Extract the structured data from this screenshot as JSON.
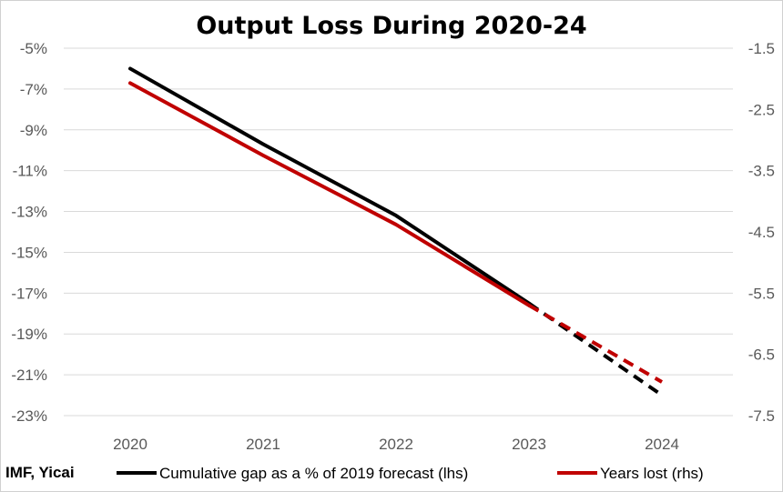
{
  "chart_data": {
    "type": "line",
    "title": "Output Loss During 2020-24",
    "source": "IMF, Yicai",
    "categories": [
      "2020",
      "2021",
      "2022",
      "2023",
      "2024"
    ],
    "y_left": {
      "ticks": [
        "-5%",
        "-7%",
        "-9%",
        "-11%",
        "-13%",
        "-15%",
        "-17%",
        "-19%",
        "-21%",
        "-23%"
      ],
      "range": [
        -23,
        -5
      ]
    },
    "y_right": {
      "ticks": [
        "-1.5",
        "-2.5",
        "-3.5",
        "-4.5",
        "-5.5",
        "-6.5",
        "-7.5"
      ],
      "range": [
        -7.5,
        -1.5
      ]
    },
    "grid": true,
    "legend_position": "bottom",
    "series": [
      {
        "name": "Cumulative gap as a % of 2019 forecast (lhs)",
        "axis": "left",
        "color": "#000000",
        "values": [
          -6.0,
          -9.7,
          -13.2,
          -17.5,
          -22.0
        ],
        "dashed_from_index": 3
      },
      {
        "name": "Years lost (rhs)",
        "axis": "right",
        "color": "#c00000",
        "values": [
          -2.07,
          -3.25,
          -4.38,
          -5.7,
          -6.95
        ],
        "dashed_from_index": 3
      }
    ]
  }
}
